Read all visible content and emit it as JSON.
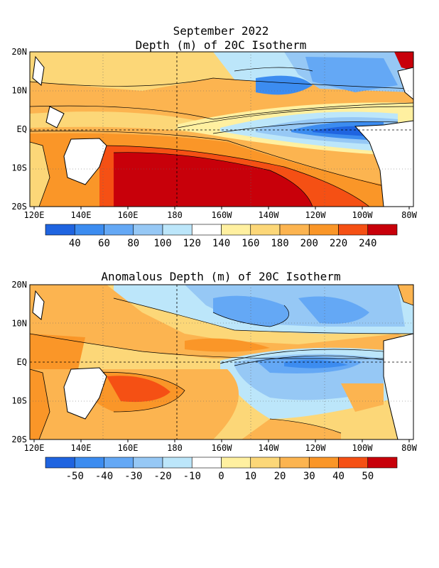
{
  "title": "September 2022",
  "panels": [
    {
      "id": "depth",
      "title": "Depth (m) of 20C Isotherm",
      "x_ticks": [
        "120E",
        "140E",
        "160E",
        "180",
        "160W",
        "140W",
        "120W",
        "100W",
        "80W"
      ],
      "y_ticks": [
        "20N",
        "10N",
        "EQ",
        "10S",
        "20S"
      ],
      "colorbar": {
        "colors": [
          "#1f64e0",
          "#3c8cf0",
          "#64a8f5",
          "#96c8f5",
          "#bce6fa",
          "#ffffff",
          "#fff0a0",
          "#fcd778",
          "#fcb450",
          "#fa9628",
          "#f55014",
          "#c8000a"
        ],
        "labels": [
          "40",
          "60",
          "80",
          "100",
          "120",
          "140",
          "160",
          "180",
          "200",
          "220",
          "240"
        ]
      }
    },
    {
      "id": "anomaly",
      "title": "Anomalous Depth (m) of 20C Isotherm",
      "x_ticks": [
        "120E",
        "140E",
        "160E",
        "180",
        "160W",
        "140W",
        "120W",
        "100W",
        "80W"
      ],
      "y_ticks": [
        "20N",
        "10N",
        "EQ",
        "10S",
        "20S"
      ],
      "colorbar": {
        "colors": [
          "#1f64e0",
          "#3c8cf0",
          "#64a8f5",
          "#96c8f5",
          "#bce6fa",
          "#ffffff",
          "#fff0a0",
          "#fcd778",
          "#fcb450",
          "#fa9628",
          "#f55014",
          "#c8000a"
        ],
        "labels": [
          "-50",
          "-40",
          "-30",
          "-20",
          "-10",
          "0",
          "10",
          "20",
          "30",
          "40",
          "50"
        ]
      }
    }
  ]
}
